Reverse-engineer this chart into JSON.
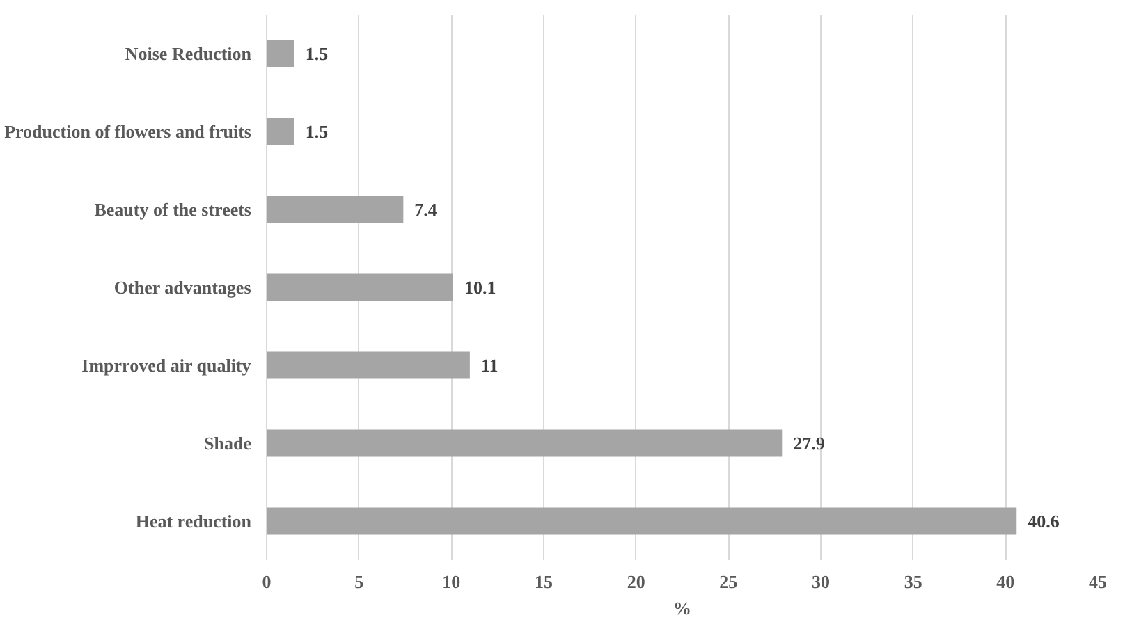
{
  "chart_data": {
    "type": "bar",
    "orientation": "horizontal",
    "xlabel": "%",
    "categories": [
      "Noise Reduction",
      "Production of flowers and fruits",
      "Beauty of the streets",
      "Other advantages",
      "Imprroved air quality",
      "Shade",
      "Heat reduction"
    ],
    "values": [
      1.5,
      1.5,
      7.4,
      10.1,
      11,
      27.9,
      40.6
    ],
    "color": "#a5a5a5",
    "xlim": [
      0,
      45
    ],
    "xticks": [
      0,
      5,
      10,
      15,
      20,
      25,
      30,
      35,
      40,
      45
    ],
    "grid": "x",
    "data_labels": true
  }
}
